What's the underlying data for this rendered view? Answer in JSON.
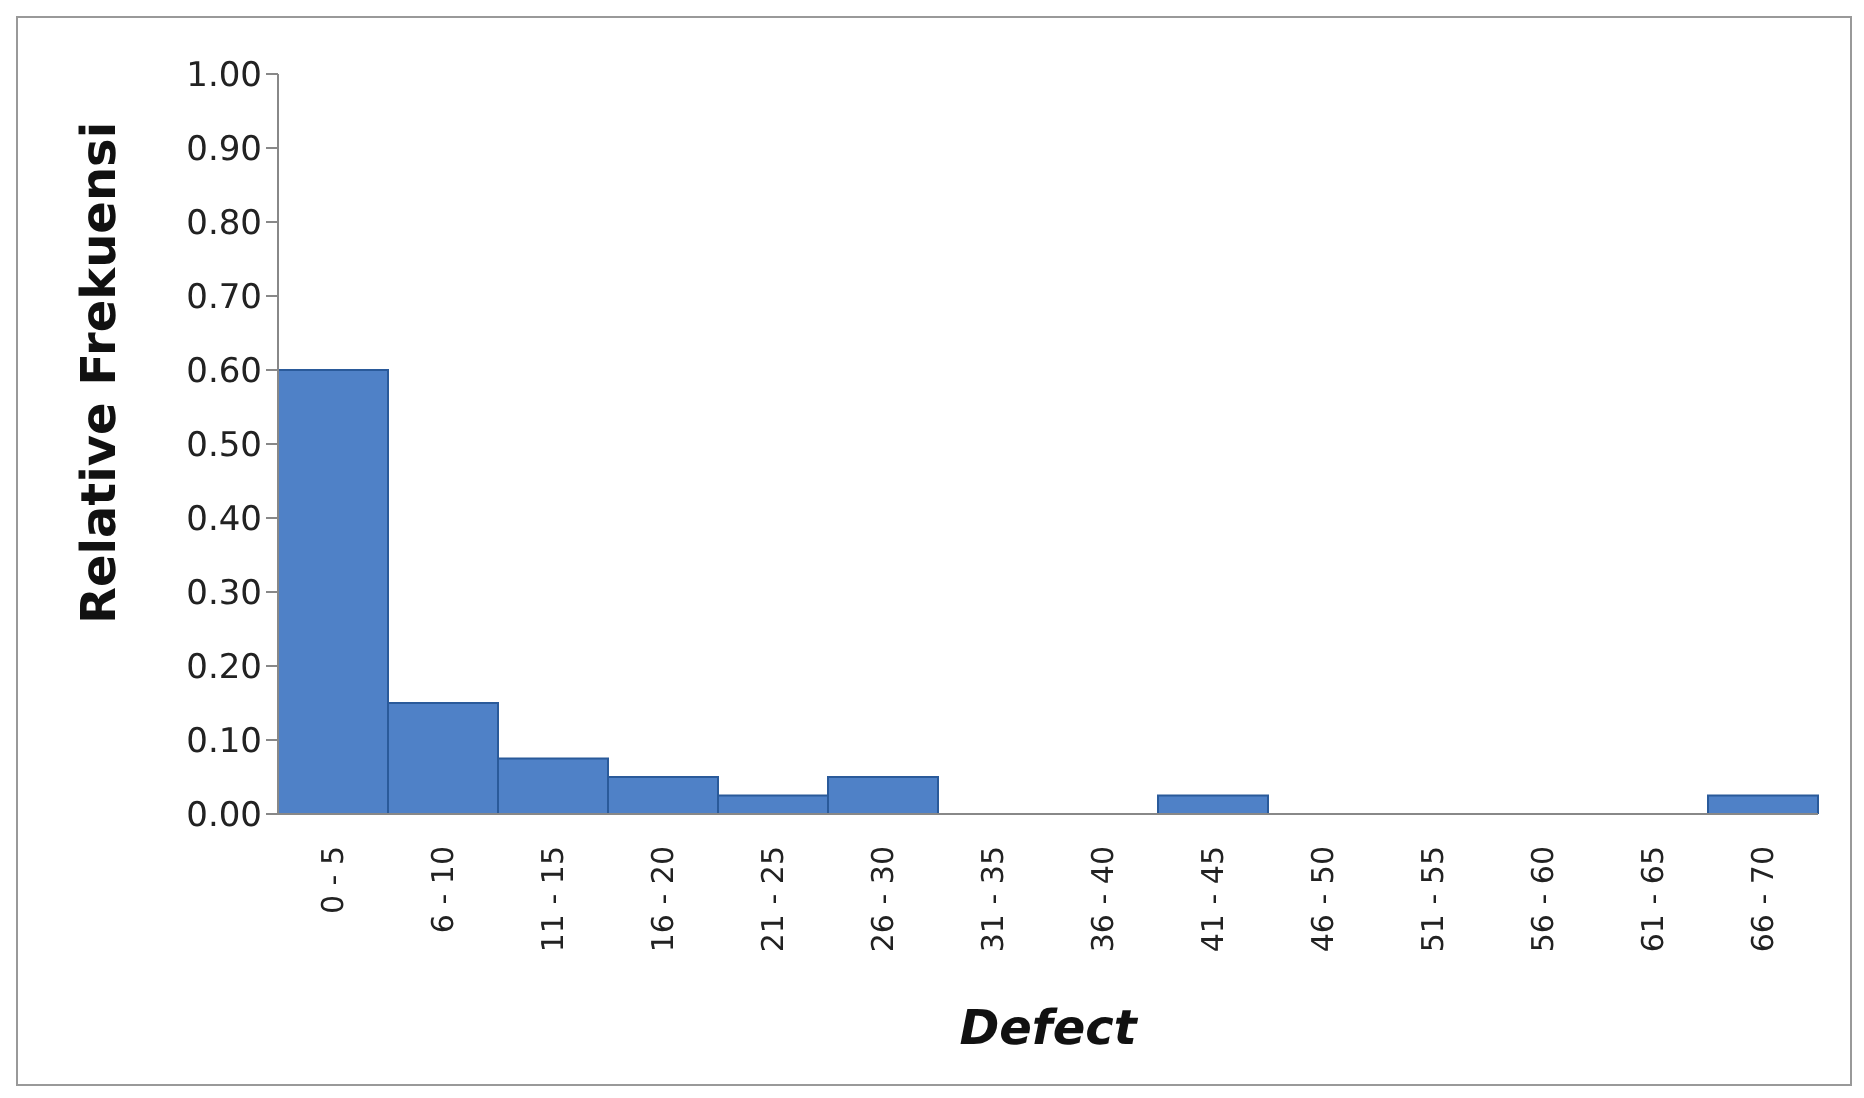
{
  "chart_data": {
    "type": "bar",
    "xlabel": "Defect",
    "ylabel": "Relative  Frekuensi",
    "categories": [
      "0 - 5",
      "6 - 10",
      "11 - 15",
      "16 - 20",
      "21 - 25",
      "26 - 30",
      "31 - 35",
      "36 - 40",
      "41 - 45",
      "46 - 50",
      "51 - 55",
      "56 - 60",
      "61 - 65",
      "66 - 70"
    ],
    "values": [
      0.6,
      0.15,
      0.075,
      0.05,
      0.025,
      0.05,
      0,
      0,
      0.025,
      0,
      0,
      0,
      0,
      0.025
    ],
    "color": "#4f81c7",
    "ylim": [
      0,
      1
    ],
    "yticks": [
      {
        "value": 0,
        "label": "0.00"
      },
      {
        "value": 0.1,
        "label": "0.10"
      },
      {
        "value": 0.2,
        "label": "0.20"
      },
      {
        "value": 0.3,
        "label": "0.30"
      },
      {
        "value": 0.4,
        "label": "0.40"
      },
      {
        "value": 0.5,
        "label": "0.50"
      },
      {
        "value": 0.6,
        "label": "0.60"
      },
      {
        "value": 0.7,
        "label": "0.70"
      },
      {
        "value": 0.8,
        "label": "0.80"
      },
      {
        "value": 0.9,
        "label": "0.90"
      },
      {
        "value": 1,
        "label": "1.00"
      }
    ],
    "grid": false,
    "legend": false
  }
}
